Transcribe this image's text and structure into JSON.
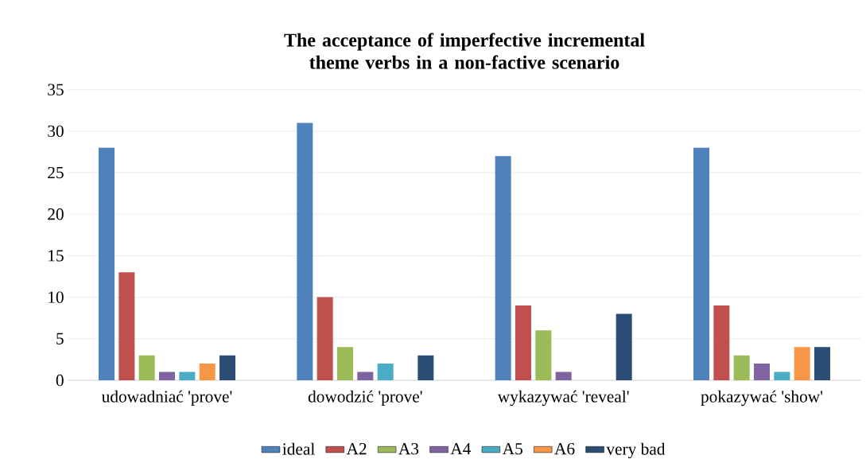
{
  "chart_data": {
    "type": "bar",
    "title": "The acceptance of imperfective incremental theme verbs in a non-factive scenario",
    "categories": [
      "udowadniać 'prove'",
      "dowodzić 'prove'",
      "wykazywać 'reveal'",
      "pokazywać 'show'"
    ],
    "series": [
      {
        "name": "ideal",
        "color": "#4f81bd",
        "values": [
          28,
          31,
          27,
          28
        ]
      },
      {
        "name": "A2",
        "color": "#c0504d",
        "values": [
          13,
          10,
          9,
          9
        ]
      },
      {
        "name": "A3",
        "color": "#9bbb59",
        "values": [
          3,
          4,
          6,
          3
        ]
      },
      {
        "name": "A4",
        "color": "#8064a2",
        "values": [
          1,
          1,
          1,
          2
        ]
      },
      {
        "name": "A5",
        "color": "#4bacc6",
        "values": [
          1,
          2,
          0,
          1
        ]
      },
      {
        "name": "A6",
        "color": "#f79646",
        "values": [
          2,
          0,
          0,
          4
        ]
      },
      {
        "name": "very bad",
        "color": "#2c4d75",
        "values": [
          3,
          3,
          8,
          4
        ]
      }
    ],
    "ylim": [
      0,
      35
    ],
    "yticks": [
      0,
      5,
      10,
      15,
      20,
      25,
      30,
      35
    ],
    "grid": "y",
    "legend": "bottom"
  }
}
